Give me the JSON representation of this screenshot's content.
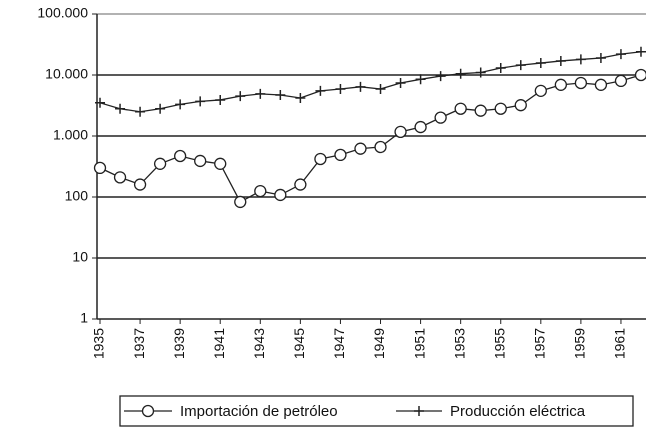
{
  "chart_data": {
    "type": "line",
    "x": [
      1935,
      1936,
      1937,
      1938,
      1939,
      1940,
      1941,
      1942,
      1943,
      1944,
      1945,
      1946,
      1947,
      1948,
      1949,
      1950,
      1951,
      1952,
      1953,
      1954,
      1955,
      1956,
      1957,
      1958,
      1959,
      1960,
      1961,
      1962
    ],
    "series": [
      {
        "name": "Importación de petróleo",
        "color": "#222222",
        "marker": "circle",
        "values": [
          300,
          210,
          160,
          350,
          470,
          390,
          350,
          83,
          125,
          108,
          160,
          420,
          490,
          620,
          660,
          1170,
          1400,
          2000,
          2800,
          2600,
          2800,
          3200,
          5500,
          6900,
          7400,
          6900,
          8000,
          10000
        ]
      },
      {
        "name": "Producción eléctrica",
        "color": "#222222",
        "marker": "plus",
        "values": [
          3500,
          2800,
          2500,
          2800,
          3300,
          3700,
          3900,
          4500,
          4900,
          4700,
          4200,
          5500,
          5900,
          6400,
          5900,
          7400,
          8500,
          9600,
          10500,
          11000,
          13000,
          14500,
          15700,
          17000,
          18000,
          19000,
          22000,
          24000
        ]
      }
    ],
    "xlim": [
      1934.85,
      1962.25
    ],
    "xticks": [
      1935,
      1937,
      1939,
      1941,
      1943,
      1945,
      1947,
      1949,
      1951,
      1953,
      1955,
      1957,
      1959,
      1961
    ],
    "ylim": [
      1,
      100000
    ],
    "log_scale": true,
    "yticks": [
      1,
      10,
      100,
      {
        "value": 1000,
        "label": "1.000"
      },
      {
        "value": 10000,
        "label": "10.000"
      },
      {
        "value": 100000,
        "label": "100.000"
      }
    ],
    "grid": true,
    "legend": "bottom"
  }
}
